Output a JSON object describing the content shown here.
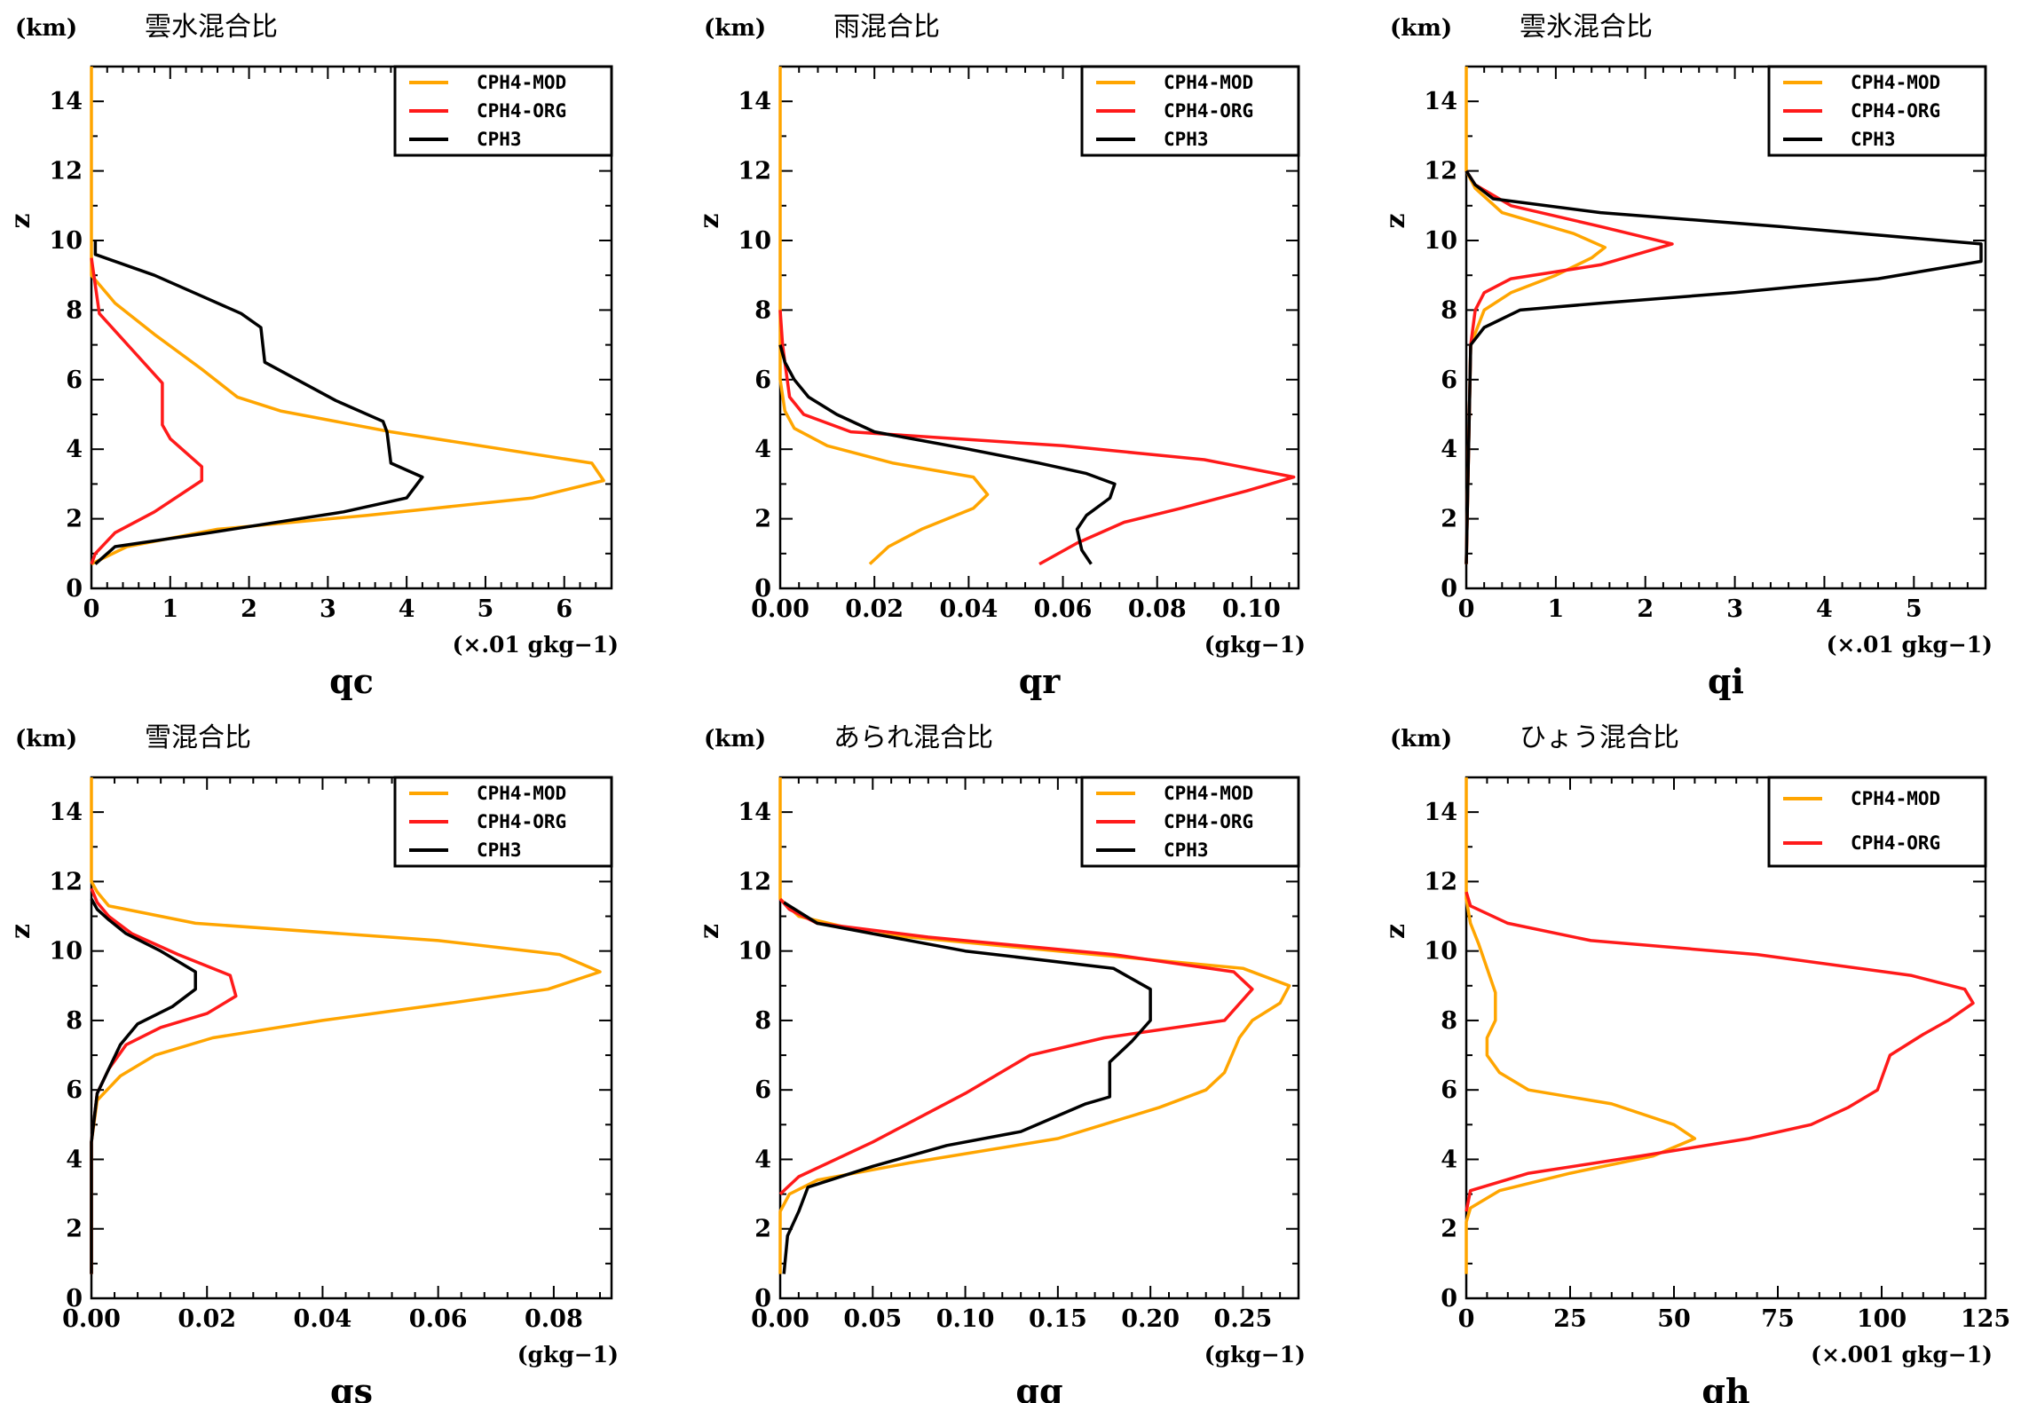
{
  "colors": {
    "CPH4-MOD": "#FFA500",
    "CPH4-ORG": "#FF1A1A",
    "CPH3": "#000000"
  },
  "chart_data": [
    {
      "type": "line",
      "title": "雲水混合比",
      "ylabel_unit": "(km)",
      "ylabel": "z",
      "xlabel": "qc",
      "xunit": "(×.01 gkg−1)",
      "xlim": [
        0,
        6.6
      ],
      "ylim": [
        0,
        15
      ],
      "xticks": [
        0,
        1,
        2,
        3,
        4,
        5,
        6
      ],
      "xticklabels": [
        "0",
        "1",
        "2",
        "3",
        "4",
        "5",
        "6"
      ],
      "yticks": [
        0,
        2,
        4,
        6,
        8,
        10,
        12,
        14
      ],
      "yticklabels": [
        "0",
        "2",
        "4",
        "6",
        "8",
        "10",
        "12",
        "14"
      ],
      "legend": "top-right",
      "series": [
        {
          "name": "CPH4-MOD",
          "x": [
            0,
            0.45,
            1.6,
            3.5,
            5.6,
            6.5,
            6.35,
            3.8,
            2.4,
            1.85,
            1.4,
            0.8,
            0.3,
            0,
            0,
            0,
            0
          ],
          "y": [
            0.7,
            1.2,
            1.7,
            2.1,
            2.6,
            3.1,
            3.6,
            4.5,
            5.1,
            5.5,
            6.3,
            7.3,
            8.2,
            9.0,
            9.5,
            12,
            15
          ]
        },
        {
          "name": "CPH4-ORG",
          "x": [
            0,
            0.05,
            0.3,
            0.8,
            1.4,
            1.4,
            1.0,
            0.9,
            0.9,
            0.9,
            0.5,
            0.1,
            0
          ],
          "y": [
            0.7,
            1.0,
            1.6,
            2.2,
            3.1,
            3.5,
            4.3,
            4.7,
            5.2,
            5.9,
            6.9,
            7.9,
            9.5
          ]
        },
        {
          "name": "CPH3",
          "x": [
            0.05,
            0.3,
            1.5,
            3.2,
            4.0,
            4.2,
            3.8,
            3.75,
            3.7,
            3.1,
            2.2,
            2.15,
            1.9,
            1.4,
            0.8,
            0.05,
            0.05
          ],
          "y": [
            0.7,
            1.2,
            1.6,
            2.2,
            2.6,
            3.2,
            3.6,
            4.5,
            4.8,
            5.4,
            6.5,
            7.5,
            7.9,
            8.4,
            9.0,
            9.6,
            10.0
          ]
        }
      ]
    },
    {
      "type": "line",
      "title": "雨混合比",
      "ylabel_unit": "(km)",
      "ylabel": "z",
      "xlabel": "qr",
      "xunit": "(gkg−1)",
      "xlim": [
        0,
        0.11
      ],
      "ylim": [
        0,
        15
      ],
      "xticks": [
        0,
        0.02,
        0.04,
        0.06,
        0.08,
        0.1
      ],
      "xticklabels": [
        "0.00",
        "0.02",
        "0.04",
        "0.06",
        "0.08",
        "0.10"
      ],
      "yticks": [
        0,
        2,
        4,
        6,
        8,
        10,
        12,
        14
      ],
      "yticklabels": [
        "0",
        "2",
        "4",
        "6",
        "8",
        "10",
        "12",
        "14"
      ],
      "legend": "top-right",
      "series": [
        {
          "name": "CPH4-MOD",
          "x": [
            0.019,
            0.023,
            0.03,
            0.041,
            0.044,
            0.041,
            0.024,
            0.01,
            0.003,
            0.001,
            0,
            0,
            0
          ],
          "y": [
            0.7,
            1.2,
            1.7,
            2.3,
            2.7,
            3.2,
            3.6,
            4.1,
            4.6,
            5.1,
            6.0,
            8.0,
            15
          ]
        },
        {
          "name": "CPH4-ORG",
          "x": [
            0.055,
            0.063,
            0.073,
            0.085,
            0.099,
            0.109,
            0.09,
            0.06,
            0.015,
            0.005,
            0.002,
            0.001,
            0.0005,
            0
          ],
          "y": [
            0.7,
            1.3,
            1.9,
            2.3,
            2.8,
            3.2,
            3.7,
            4.1,
            4.5,
            5.0,
            5.5,
            6.5,
            7.0,
            8.0
          ]
        },
        {
          "name": "CPH3",
          "x": [
            0.066,
            0.064,
            0.063,
            0.065,
            0.07,
            0.071,
            0.065,
            0.055,
            0.04,
            0.02,
            0.012,
            0.006,
            0.003,
            0.001,
            0
          ],
          "y": [
            0.7,
            1.1,
            1.7,
            2.1,
            2.6,
            3.0,
            3.3,
            3.6,
            4.0,
            4.5,
            5.0,
            5.5,
            6.0,
            6.5,
            7.0
          ]
        }
      ]
    },
    {
      "type": "line",
      "title": "雲氷混合比",
      "ylabel_unit": "(km)",
      "ylabel": "z",
      "xlabel": "qi",
      "xunit": "(×.01 gkg−1)",
      "xlim": [
        0,
        5.8
      ],
      "ylim": [
        0,
        15
      ],
      "xticks": [
        0,
        1,
        2,
        3,
        4,
        5
      ],
      "xticklabels": [
        "0",
        "1",
        "2",
        "3",
        "4",
        "5"
      ],
      "yticks": [
        0,
        2,
        4,
        6,
        8,
        10,
        12,
        14
      ],
      "yticklabels": [
        "0",
        "2",
        "4",
        "6",
        "8",
        "10",
        "12",
        "14"
      ],
      "legend": "top-right",
      "series": [
        {
          "name": "CPH4-MOD",
          "x": [
            0,
            0.05,
            0.2,
            0.5,
            1.0,
            1.4,
            1.55,
            1.2,
            0.4,
            0.1,
            0,
            0,
            0
          ],
          "y": [
            0.7,
            7.0,
            8.0,
            8.5,
            9.0,
            9.5,
            9.8,
            10.2,
            10.8,
            11.5,
            12.0,
            13,
            15
          ]
        },
        {
          "name": "CPH4-ORG",
          "x": [
            0,
            0.05,
            0.1,
            0.2,
            0.5,
            1.5,
            2.3,
            1.5,
            0.5,
            0.1,
            0
          ],
          "y": [
            0.7,
            7.0,
            8.0,
            8.5,
            8.9,
            9.3,
            9.9,
            10.4,
            11.0,
            11.6,
            12.0
          ]
        },
        {
          "name": "CPH3",
          "x": [
            0,
            0.05,
            0.2,
            0.6,
            1.5,
            3.0,
            4.6,
            5.75,
            5.75,
            3.5,
            1.5,
            0.3,
            0.1,
            0
          ],
          "y": [
            0.7,
            7.0,
            7.5,
            8.0,
            8.2,
            8.5,
            8.9,
            9.4,
            9.9,
            10.4,
            10.8,
            11.2,
            11.6,
            12.0
          ]
        }
      ]
    },
    {
      "type": "line",
      "title": "雪混合比",
      "ylabel_unit": "(km)",
      "ylabel": "z",
      "xlabel": "qs",
      "xunit": "(gkg−1)",
      "xlim": [
        0,
        0.09
      ],
      "ylim": [
        0,
        15
      ],
      "xticks": [
        0,
        0.02,
        0.04,
        0.06,
        0.08
      ],
      "xticklabels": [
        "0.00",
        "0.02",
        "0.04",
        "0.06",
        "0.08"
      ],
      "yticks": [
        0,
        2,
        4,
        6,
        8,
        10,
        12,
        14
      ],
      "yticklabels": [
        "0",
        "2",
        "4",
        "6",
        "8",
        "10",
        "12",
        "14"
      ],
      "legend": "top-right",
      "series": [
        {
          "name": "CPH4-MOD",
          "x": [
            0,
            0,
            0.001,
            0.005,
            0.011,
            0.021,
            0.04,
            0.062,
            0.079,
            0.088,
            0.081,
            0.06,
            0.018,
            0.003,
            0.001,
            0,
            0
          ],
          "y": [
            0.7,
            4.5,
            5.7,
            6.4,
            7.0,
            7.5,
            8.0,
            8.5,
            8.9,
            9.4,
            9.9,
            10.3,
            10.8,
            11.3,
            11.7,
            12,
            15
          ]
        },
        {
          "name": "CPH4-ORG",
          "x": [
            0,
            0,
            0.001,
            0.003,
            0.006,
            0.012,
            0.02,
            0.025,
            0.024,
            0.015,
            0.007,
            0.003,
            0.001,
            0
          ],
          "y": [
            0.7,
            4.5,
            5.9,
            6.6,
            7.3,
            7.8,
            8.2,
            8.7,
            9.3,
            9.9,
            10.5,
            11.0,
            11.4,
            11.8
          ]
        },
        {
          "name": "CPH3",
          "x": [
            0,
            0,
            0.001,
            0.003,
            0.005,
            0.008,
            0.014,
            0.018,
            0.018,
            0.012,
            0.006,
            0.003,
            0.001,
            0
          ],
          "y": [
            0.7,
            4.5,
            5.9,
            6.6,
            7.3,
            7.9,
            8.4,
            8.9,
            9.4,
            10.0,
            10.5,
            10.9,
            11.2,
            11.5
          ]
        }
      ]
    },
    {
      "type": "line",
      "title": "あられ混合比",
      "ylabel_unit": "(km)",
      "ylabel": "z",
      "xlabel": "qg",
      "xunit": "(gkg−1)",
      "xlim": [
        0,
        0.28
      ],
      "ylim": [
        0,
        15
      ],
      "xticks": [
        0,
        0.05,
        0.1,
        0.15,
        0.2,
        0.25
      ],
      "xticklabels": [
        "0.00",
        "0.05",
        "0.10",
        "0.15",
        "0.20",
        "0.25"
      ],
      "yticks": [
        0,
        2,
        4,
        6,
        8,
        10,
        12,
        14
      ],
      "yticklabels": [
        "0",
        "2",
        "4",
        "6",
        "8",
        "10",
        "12",
        "14"
      ],
      "legend": "top-right",
      "series": [
        {
          "name": "CPH4-MOD",
          "x": [
            0,
            0,
            0.005,
            0.02,
            0.07,
            0.15,
            0.205,
            0.23,
            0.24,
            0.248,
            0.255,
            0.27,
            0.275,
            0.25,
            0.15,
            0.05,
            0.01,
            0,
            0
          ],
          "y": [
            0.7,
            2.5,
            3.0,
            3.4,
            3.9,
            4.6,
            5.5,
            6.0,
            6.5,
            7.5,
            8.0,
            8.5,
            9.0,
            9.5,
            10.0,
            10.5,
            11.0,
            11.5,
            15
          ]
        },
        {
          "name": "CPH4-ORG",
          "x": [
            0,
            0.01,
            0.05,
            0.1,
            0.135,
            0.175,
            0.24,
            0.255,
            0.245,
            0.18,
            0.08,
            0.02,
            0.005,
            0
          ],
          "y": [
            3.0,
            3.5,
            4.5,
            5.9,
            7.0,
            7.5,
            8.0,
            8.9,
            9.4,
            9.9,
            10.4,
            10.8,
            11.2,
            11.5
          ]
        },
        {
          "name": "CPH3",
          "x": [
            0.002,
            0.004,
            0.01,
            0.015,
            0.05,
            0.09,
            0.13,
            0.165,
            0.178,
            0.178,
            0.19,
            0.2,
            0.2,
            0.18,
            0.1,
            0.02,
            0.002
          ],
          "y": [
            0.7,
            1.8,
            2.5,
            3.2,
            3.8,
            4.4,
            4.8,
            5.6,
            5.8,
            6.8,
            7.4,
            8.0,
            8.9,
            9.5,
            10.0,
            10.8,
            11.4
          ]
        }
      ]
    },
    {
      "type": "line",
      "title": "ひょう混合比",
      "ylabel_unit": "(km)",
      "ylabel": "z",
      "xlabel": "qh",
      "xunit": "(×.001 gkg−1)",
      "xlim": [
        0,
        125
      ],
      "ylim": [
        0,
        15
      ],
      "xticks": [
        0,
        25,
        50,
        75,
        100,
        125
      ],
      "xticklabels": [
        "0",
        "25",
        "50",
        "75",
        "100",
        "125"
      ],
      "yticks": [
        0,
        2,
        4,
        6,
        8,
        10,
        12,
        14
      ],
      "yticklabels": [
        "0",
        "2",
        "4",
        "6",
        "8",
        "10",
        "12",
        "14"
      ],
      "legend": "top-right",
      "series": [
        {
          "name": "CPH4-MOD",
          "x": [
            0,
            0,
            1,
            8,
            25,
            45,
            55,
            50,
            35,
            15,
            8,
            5,
            5,
            7,
            7,
            5,
            3,
            1,
            0,
            0
          ],
          "y": [
            0.7,
            2.2,
            2.6,
            3.1,
            3.6,
            4.1,
            4.6,
            5.0,
            5.6,
            6.0,
            6.5,
            7.0,
            7.5,
            8.0,
            8.8,
            9.5,
            10.2,
            10.8,
            11.5,
            15
          ]
        },
        {
          "name": "CPH4-ORG",
          "x": [
            0,
            1,
            15,
            42,
            68,
            83,
            92,
            99,
            102,
            110,
            116,
            122,
            120,
            107,
            70,
            30,
            10,
            1,
            0
          ],
          "y": [
            2.5,
            3.1,
            3.6,
            4.1,
            4.6,
            5.0,
            5.5,
            6.0,
            7.0,
            7.6,
            8.0,
            8.5,
            8.9,
            9.3,
            9.9,
            10.3,
            10.8,
            11.3,
            11.7
          ]
        }
      ]
    }
  ]
}
